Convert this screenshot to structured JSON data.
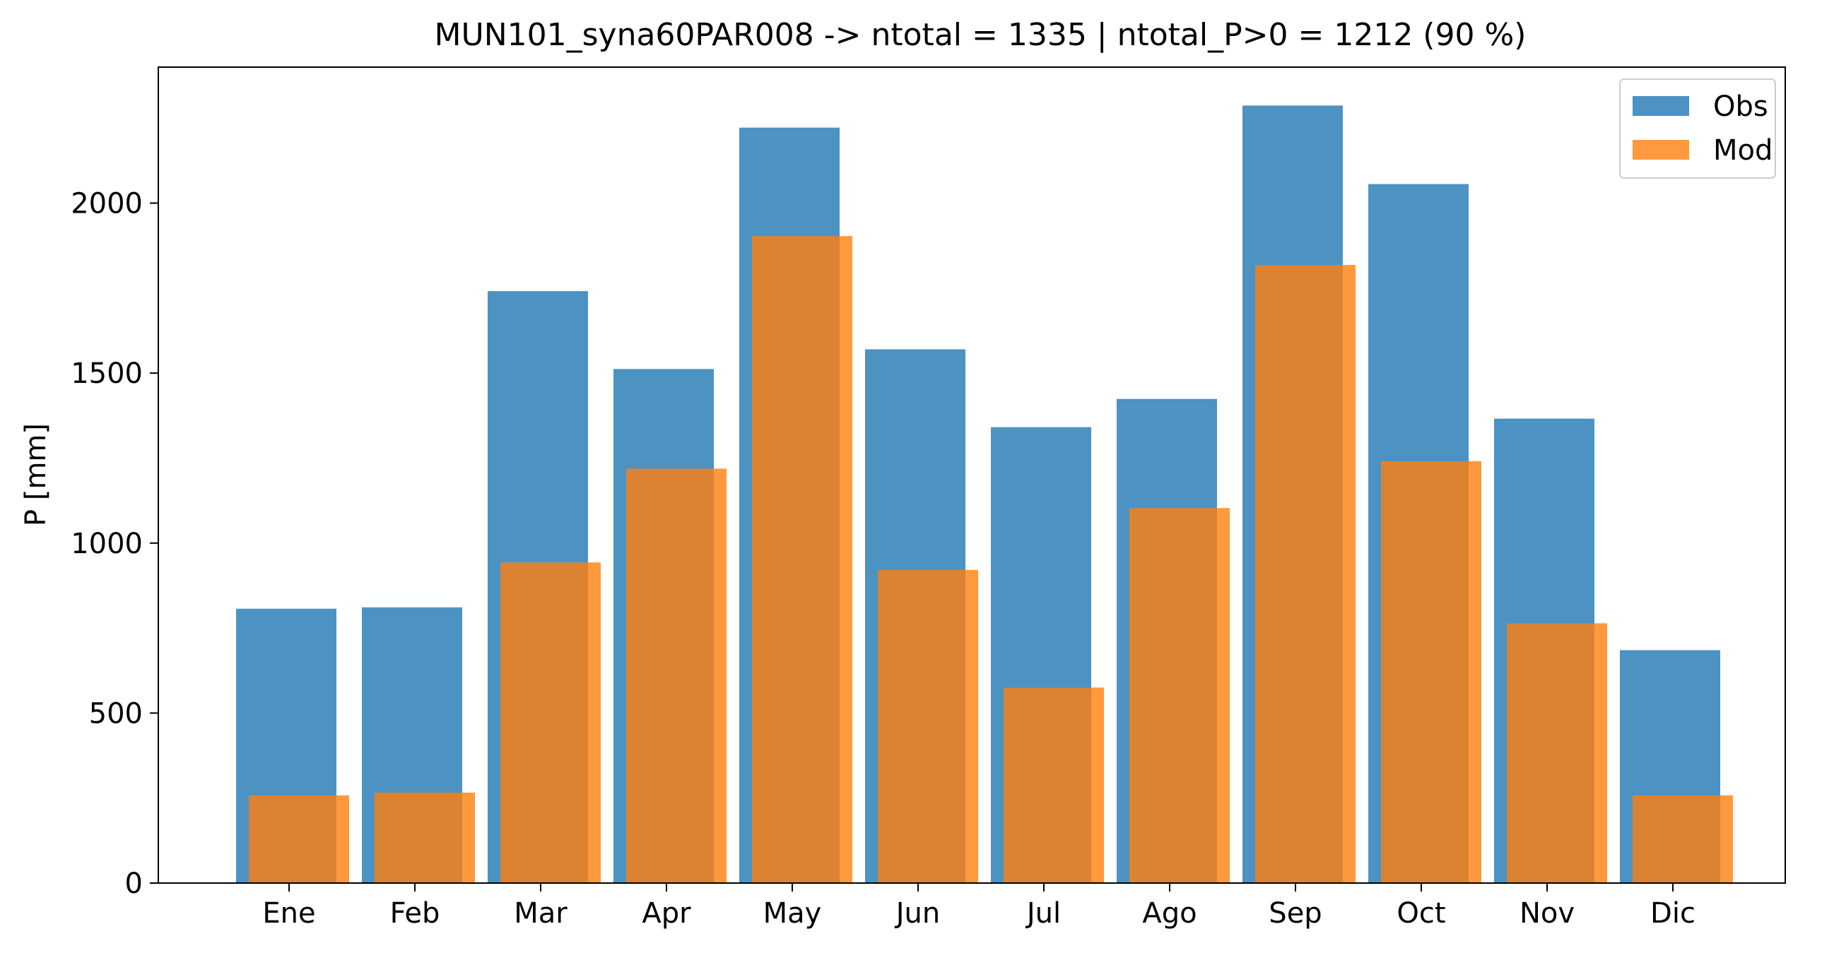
{
  "chart_data": {
    "type": "bar",
    "title": "MUN101_syna60PAR008 -> ntotal = 1335 | ntotal_P>0 = 1212 (90 %)",
    "xlabel": "",
    "ylabel": "P [mm]",
    "categories": [
      "Ene",
      "Feb",
      "Mar",
      "Apr",
      "May",
      "Jun",
      "Jul",
      "Ago",
      "Sep",
      "Oct",
      "Nov",
      "Dic"
    ],
    "series": [
      {
        "name": "Obs",
        "color": "#1f77b4",
        "values": [
          807,
          811,
          1741,
          1512,
          2222,
          1570,
          1341,
          1424,
          2287,
          2056,
          1366,
          685
        ]
      },
      {
        "name": "Mod",
        "color": "#ff7f0e",
        "values": [
          258,
          266,
          943,
          1219,
          1903,
          921,
          575,
          1103,
          1818,
          1241,
          764,
          258
        ]
      }
    ],
    "yticks": [
      0,
      500,
      1000,
      1500,
      2000
    ],
    "ylim": [
      0,
      2400
    ],
    "grid": false,
    "legend_position": "top-right"
  }
}
